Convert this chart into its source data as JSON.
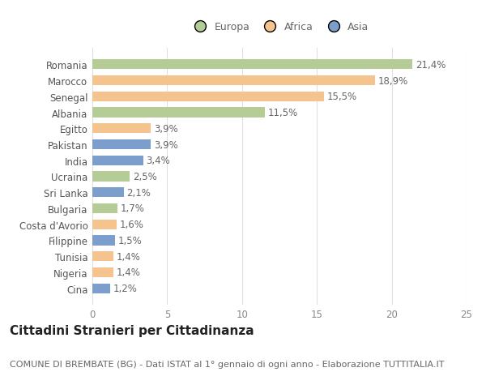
{
  "categories": [
    "Romania",
    "Marocco",
    "Senegal",
    "Albania",
    "Egitto",
    "Pakistan",
    "India",
    "Ucraina",
    "Sri Lanka",
    "Bulgaria",
    "Costa d'Avorio",
    "Filippine",
    "Tunisia",
    "Nigeria",
    "Cina"
  ],
  "values": [
    21.4,
    18.9,
    15.5,
    11.5,
    3.9,
    3.9,
    3.4,
    2.5,
    2.1,
    1.7,
    1.6,
    1.5,
    1.4,
    1.4,
    1.2
  ],
  "labels": [
    "21,4%",
    "18,9%",
    "15,5%",
    "11,5%",
    "3,9%",
    "3,9%",
    "3,4%",
    "2,5%",
    "2,1%",
    "1,7%",
    "1,6%",
    "1,5%",
    "1,4%",
    "1,4%",
    "1,2%"
  ],
  "continents": [
    "Europa",
    "Africa",
    "Africa",
    "Europa",
    "Africa",
    "Asia",
    "Asia",
    "Europa",
    "Asia",
    "Europa",
    "Africa",
    "Asia",
    "Africa",
    "Africa",
    "Asia"
  ],
  "colors": {
    "Europa": "#b5cc96",
    "Africa": "#f5c48e",
    "Asia": "#7b9ecc"
  },
  "legend_labels": [
    "Europa",
    "Africa",
    "Asia"
  ],
  "title": "Cittadini Stranieri per Cittadinanza",
  "subtitle": "COMUNE DI BREMBATE (BG) - Dati ISTAT al 1° gennaio di ogni anno - Elaborazione TUTTITALIA.IT",
  "xlim": [
    0,
    25
  ],
  "xticks": [
    0,
    5,
    10,
    15,
    20,
    25
  ],
  "background_color": "#ffffff",
  "grid_color": "#e0e0e0",
  "bar_height": 0.62,
  "label_fontsize": 8.5,
  "title_fontsize": 11,
  "subtitle_fontsize": 8,
  "tick_fontsize": 8.5,
  "ytick_fontsize": 8.5
}
